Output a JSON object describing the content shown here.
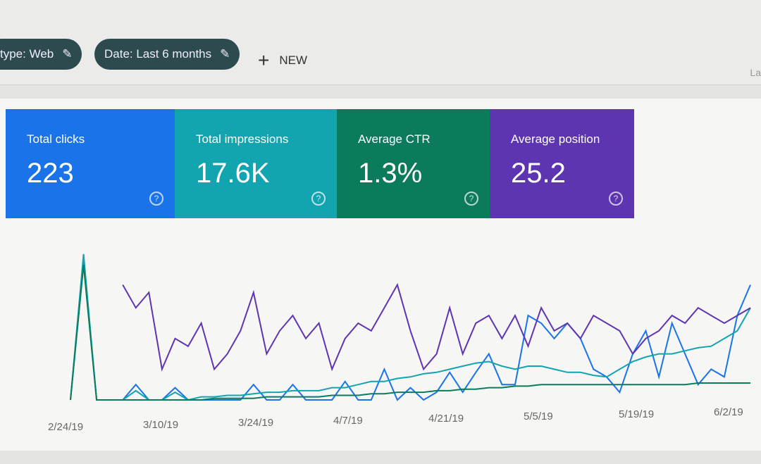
{
  "filters": [
    {
      "label": "type: Web",
      "icon": "pencil-icon"
    },
    {
      "label": "Date: Last 6 months",
      "icon": "pencil-icon"
    }
  ],
  "new_button": {
    "icon": "plus-icon",
    "label": "NEW"
  },
  "corner_text": "La",
  "metrics": [
    {
      "label": "Total clicks",
      "value": "223",
      "color": "#1a73e8"
    },
    {
      "label": "Total impressions",
      "value": "17.6K",
      "color": "#12a4af"
    },
    {
      "label": "Average CTR",
      "value": "1.3%",
      "color": "#0b7b5c"
    },
    {
      "label": "Average position",
      "value": "25.2",
      "color": "#5e35b1"
    }
  ],
  "chart_data": {
    "type": "line",
    "x_tick_labels": [
      "2/24/19",
      "3/10/19",
      "3/24/19",
      "4/7/19",
      "4/21/19",
      "5/5/19",
      "5/19/19",
      "6/2/19"
    ],
    "grid": false,
    "series": [
      {
        "color": "#1a73e8",
        "values": [
          0,
          90,
          0,
          0,
          0,
          10,
          0,
          0,
          8,
          0,
          0,
          0,
          0,
          0,
          10,
          0,
          0,
          10,
          0,
          0,
          0,
          12,
          0,
          0,
          20,
          0,
          8,
          0,
          5,
          18,
          5,
          18,
          30,
          10,
          10,
          55,
          50,
          40,
          50,
          40,
          20,
          15,
          5,
          30,
          45,
          15,
          50,
          30,
          10,
          20,
          15,
          55,
          75
        ]
      },
      {
        "color": "#12a4af",
        "values": [
          0,
          95,
          0,
          0,
          0,
          6,
          0,
          0,
          5,
          0,
          2,
          2,
          3,
          3,
          4,
          5,
          5,
          6,
          6,
          6,
          8,
          8,
          10,
          12,
          12,
          14,
          15,
          17,
          18,
          20,
          22,
          24,
          25,
          22,
          20,
          22,
          22,
          20,
          18,
          18,
          16,
          15,
          20,
          25,
          28,
          30,
          30,
          32,
          34,
          35,
          40,
          45,
          60
        ]
      },
      {
        "color": "#0b7b5c",
        "values": [
          0,
          88,
          0,
          0,
          0,
          0,
          0,
          0,
          0,
          0,
          0,
          1,
          1,
          1,
          1,
          2,
          2,
          2,
          2,
          2,
          3,
          3,
          3,
          4,
          4,
          5,
          5,
          5,
          6,
          6,
          7,
          7,
          8,
          8,
          9,
          9,
          10,
          10,
          10,
          10,
          10,
          10,
          10,
          10,
          10,
          10,
          10,
          10,
          11,
          11,
          11,
          11,
          11
        ]
      },
      {
        "color": "#5e35b1",
        "values": [
          null,
          null,
          null,
          null,
          75,
          60,
          70,
          20,
          40,
          35,
          50,
          20,
          30,
          45,
          70,
          30,
          45,
          55,
          40,
          50,
          20,
          40,
          50,
          45,
          60,
          75,
          45,
          20,
          30,
          60,
          30,
          50,
          55,
          40,
          55,
          35,
          60,
          45,
          50,
          40,
          55,
          50,
          45,
          30,
          40,
          45,
          55,
          50,
          60,
          55,
          50,
          55,
          60
        ]
      }
    ]
  }
}
